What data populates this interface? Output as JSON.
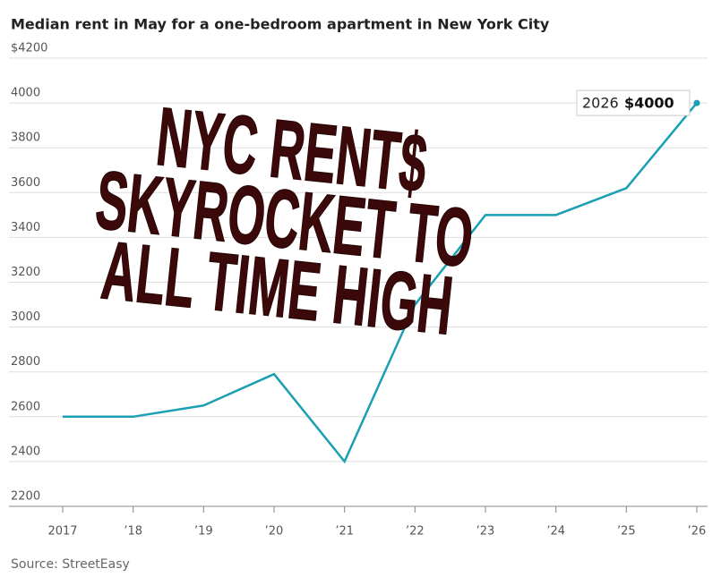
{
  "chart_data": {
    "type": "line",
    "title": "Median rent in May for a one-bedroom apartment in New York City",
    "source": "Source: StreetEasy",
    "categories": [
      "2017",
      "’18",
      "’19",
      "’20",
      "’21",
      "’22",
      "’23",
      "’24",
      "’25",
      "’26"
    ],
    "values": [
      2600,
      2600,
      2650,
      2790,
      2400,
      3100,
      3500,
      3500,
      3620,
      4000
    ],
    "color": "#1a9fb3",
    "ylim": [
      2200,
      4200
    ],
    "yticks": [
      2200,
      2400,
      2600,
      2800,
      3000,
      3200,
      3400,
      3600,
      3800,
      4000,
      {
        "value": 4200,
        "label": "$4200"
      }
    ],
    "grid": true,
    "annotation": {
      "year": "2026",
      "value_label": "$4000"
    },
    "overlay_text": [
      "NYC RENT$",
      "SKYROCKET TO",
      "ALL TIME HIGH"
    ]
  }
}
